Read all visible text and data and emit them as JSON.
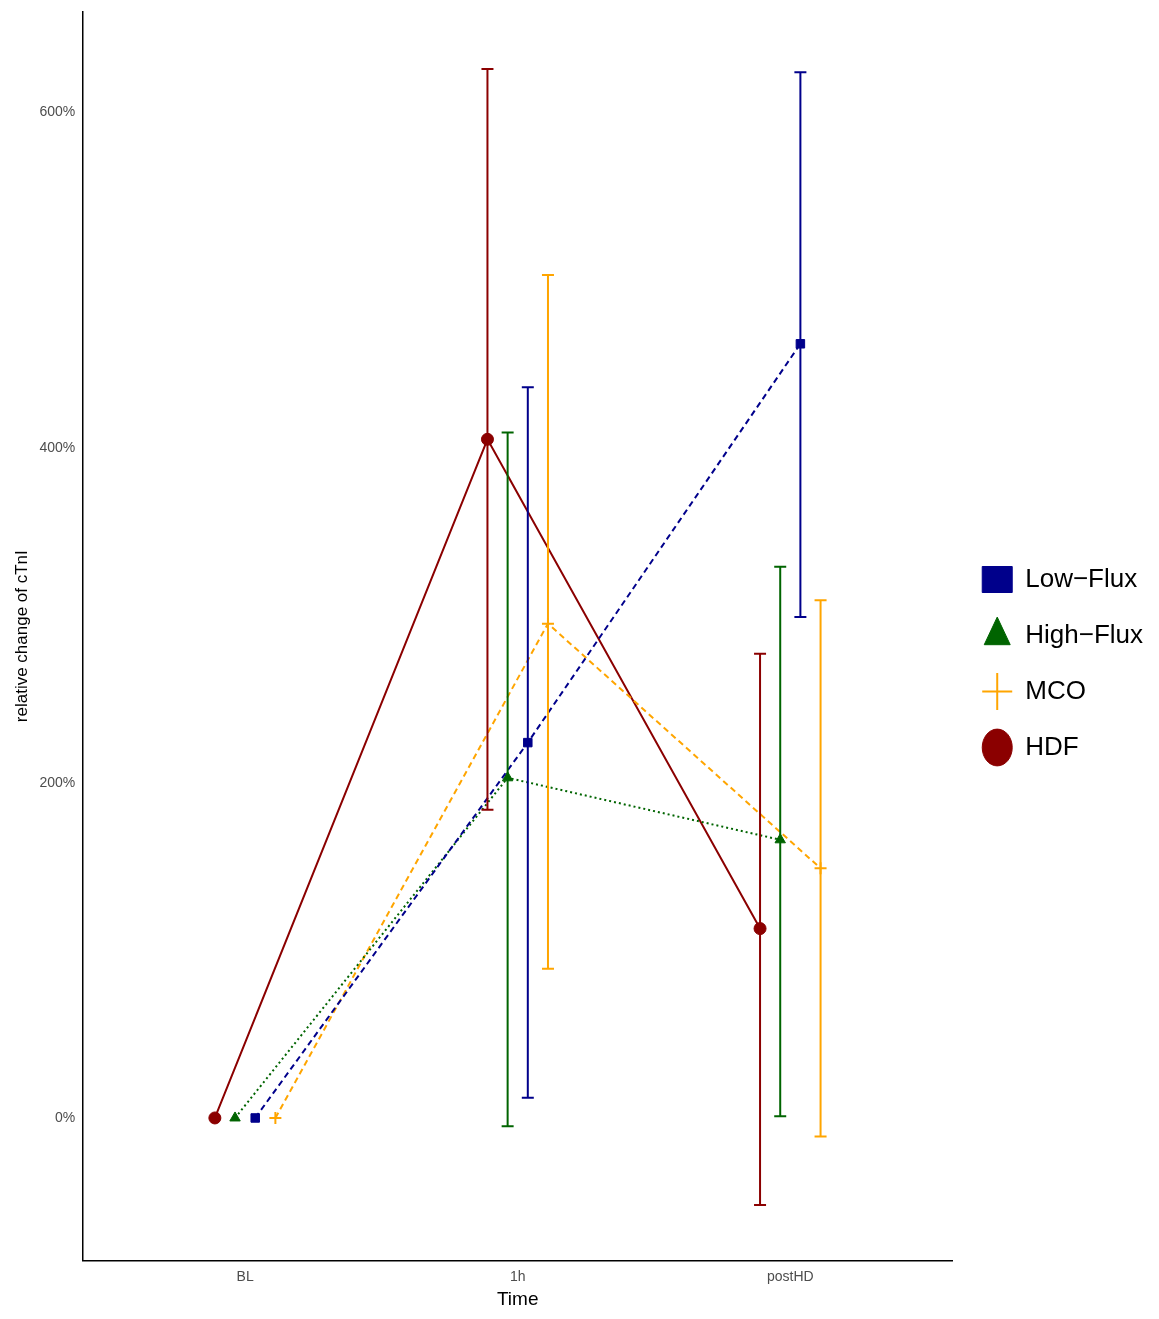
{
  "chart_data": {
    "type": "line",
    "xlabel": "Time",
    "ylabel": "relative change of cTnI",
    "categories": [
      "BL",
      "1h",
      "postHD"
    ],
    "ylim": [
      -85,
      660
    ],
    "yticks": [
      {
        "value": 0,
        "label": "0%"
      },
      {
        "value": 200,
        "label": "200%"
      },
      {
        "value": 400,
        "label": "400%"
      },
      {
        "value": 600,
        "label": "600%"
      }
    ],
    "grid": false,
    "legend": "right",
    "series": [
      {
        "name": "Low−Flux",
        "color": "#00008b",
        "marker": "square",
        "line_style": "dashed",
        "values": [
          0,
          224,
          462
        ],
        "errors": [
          null,
          [
            12,
            436
          ],
          [
            299,
            624
          ]
        ]
      },
      {
        "name": "High−Flux",
        "color": "#006400",
        "marker": "triangle",
        "line_style": "dotted",
        "values": [
          0,
          203,
          166
        ],
        "errors": [
          null,
          [
            -5,
            409
          ],
          [
            1,
            329
          ]
        ]
      },
      {
        "name": "MCO",
        "color": "#ffa500",
        "marker": "cross",
        "line_style": "dashed",
        "values": [
          0,
          295,
          149
        ],
        "errors": [
          null,
          [
            89,
            503
          ],
          [
            -11,
            309
          ]
        ]
      },
      {
        "name": "HDF",
        "color": "#8b0000",
        "marker": "circle",
        "line_style": "solid",
        "values": [
          0,
          405,
          113
        ],
        "errors": [
          null,
          [
            184,
            626
          ],
          [
            -52,
            277
          ]
        ]
      }
    ]
  }
}
